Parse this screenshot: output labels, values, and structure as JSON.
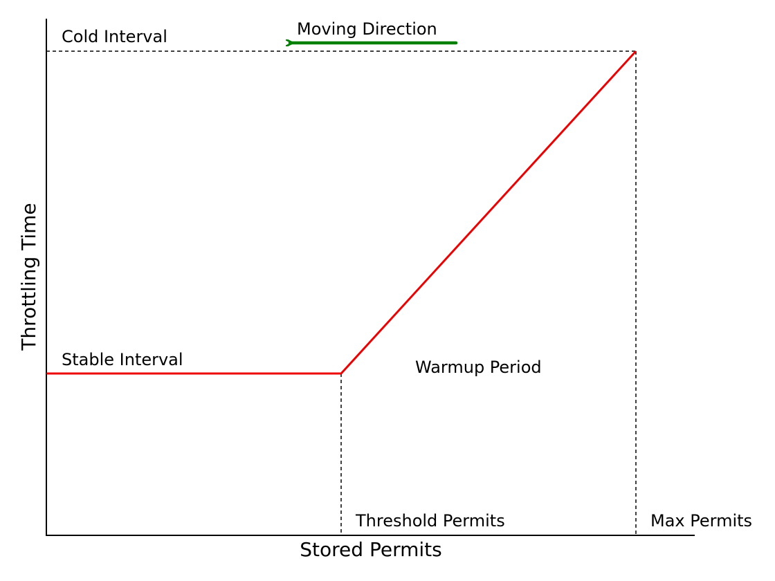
{
  "chart_data": {
    "type": "line",
    "title": "",
    "xlabel": "Stored Permits",
    "ylabel": "Throttling Time",
    "grid": false,
    "legend": "none",
    "series": [
      {
        "points": [
          {
            "x": "0",
            "y": "Stable Interval"
          },
          {
            "x": "Threshold Permits",
            "y": "Stable Interval"
          },
          {
            "x": "Max Permits",
            "y": "Cold Interval"
          }
        ],
        "color": "#ee0000"
      }
    ],
    "reference_lines": [
      {
        "orientation": "horizontal",
        "at": "Cold Interval",
        "style": "dashed"
      },
      {
        "orientation": "vertical",
        "at": "Threshold Permits",
        "style": "dashed"
      },
      {
        "orientation": "vertical",
        "at": "Max Permits",
        "style": "dashed"
      }
    ],
    "annotations": {
      "cold_interval": "Cold Interval",
      "stable_interval": "Stable Interval",
      "warmup_period": "Warmup Period",
      "threshold_permits": "Threshold Permits",
      "max_permits": "Max Permits",
      "moving_direction": "Moving Direction"
    },
    "arrow": {
      "direction": "left",
      "color": "#008000"
    }
  },
  "colors": {
    "curve": "#ee0000",
    "arrow": "#008000",
    "axis": "#000000"
  }
}
